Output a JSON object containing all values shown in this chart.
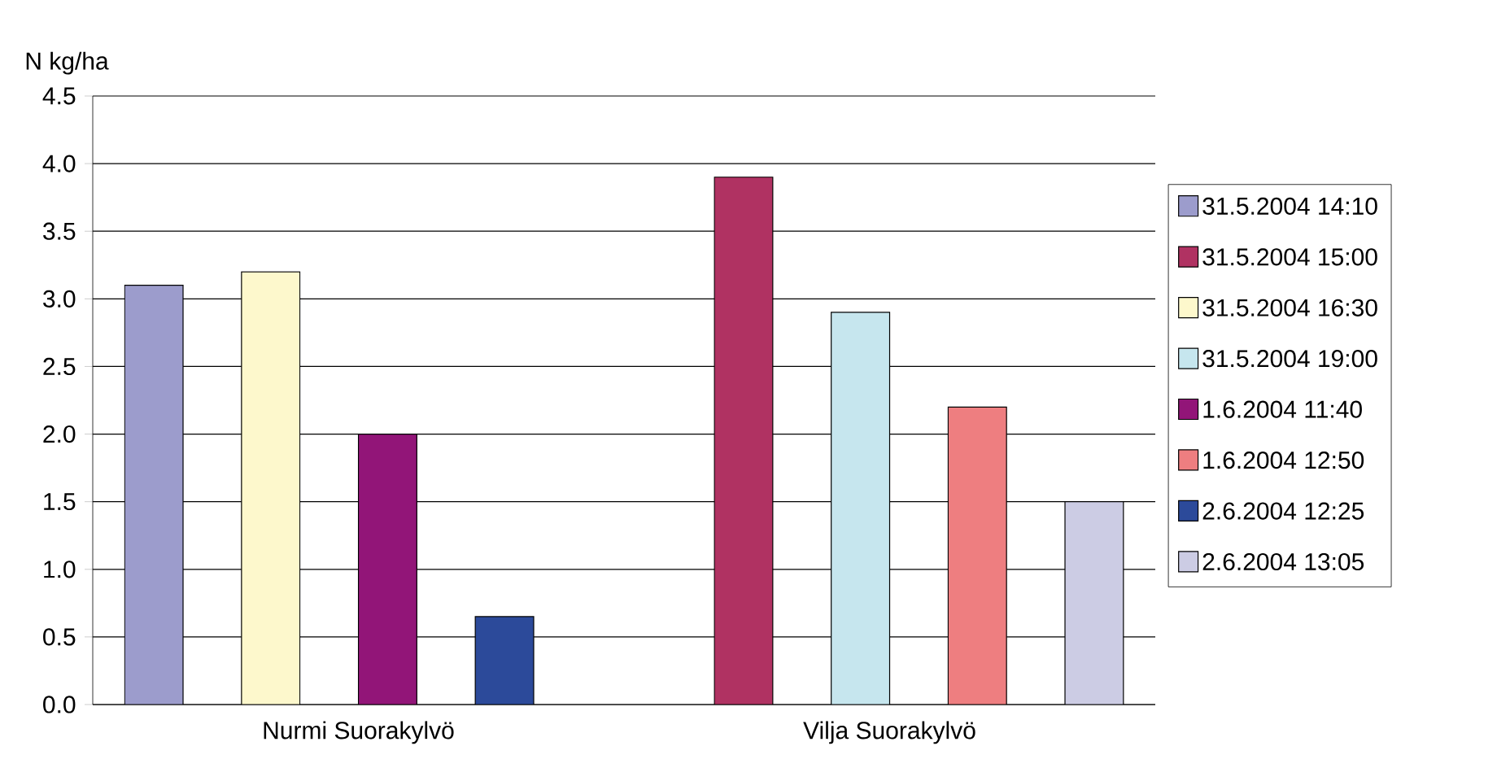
{
  "chart_data": {
    "type": "bar",
    "ylabel": "N kg/ha",
    "categories": [
      "Nurmi Suorakylvö",
      "Vilja Suorakylvö"
    ],
    "series": [
      {
        "name": "31.5.2004 14:10",
        "color": "#9c9ccc",
        "values": [
          3.1,
          null
        ]
      },
      {
        "name": "31.5.2004 15:00",
        "color": "#b03262",
        "values": [
          null,
          3.9
        ]
      },
      {
        "name": "31.5.2004 16:30",
        "color": "#fdf8cc",
        "values": [
          3.2,
          null
        ]
      },
      {
        "name": "31.5.2004 19:00",
        "color": "#c6e6ee",
        "values": [
          null,
          2.9
        ]
      },
      {
        "name": "1.6.2004 11:40",
        "color": "#921578",
        "values": [
          2.0,
          null
        ]
      },
      {
        "name": "1.6.2004 12:50",
        "color": "#ee7e80",
        "values": [
          null,
          2.2
        ]
      },
      {
        "name": "2.6.2004 12:25",
        "color": "#2c4a9a",
        "values": [
          0.65,
          null
        ]
      },
      {
        "name": "2.6.2004 13:05",
        "color": "#cccce4",
        "values": [
          null,
          1.5
        ]
      }
    ],
    "ylim": [
      0,
      4.5
    ],
    "yticks": [
      {
        "value": 0,
        "label": "0.0"
      },
      {
        "value": 0.5,
        "label": "0.5"
      },
      {
        "value": 1,
        "label": "1.0"
      },
      {
        "value": 1.5,
        "label": "1.5"
      },
      {
        "value": 2,
        "label": "2.0"
      },
      {
        "value": 2.5,
        "label": "2.5"
      },
      {
        "value": 3,
        "label": "3.0"
      },
      {
        "value": 3.5,
        "label": "3.5"
      },
      {
        "value": 4,
        "label": "4.0"
      },
      {
        "value": 4.5,
        "label": "4.5"
      }
    ],
    "grid": "y",
    "legend": "right"
  }
}
